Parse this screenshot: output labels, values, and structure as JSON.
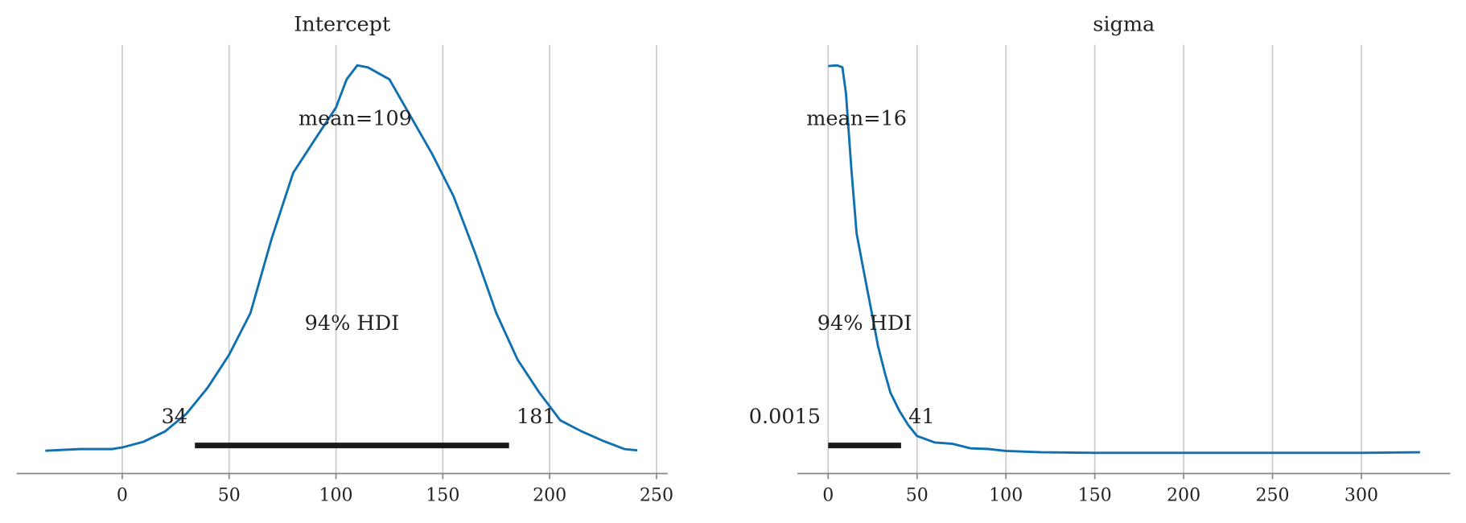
{
  "chart_data": [
    {
      "type": "density",
      "title": "Intercept",
      "color": "#1170b0",
      "x": [
        -36,
        -20,
        -5,
        0,
        10,
        20,
        30,
        40,
        50,
        60,
        70,
        80,
        90,
        100,
        105,
        110,
        115,
        125,
        135,
        145,
        155,
        165,
        175,
        185,
        195,
        205,
        215,
        225,
        235,
        241
      ],
      "values": [
        0.0001,
        0.00014,
        0.00014,
        0.00018,
        0.00032,
        0.00057,
        0.001,
        0.00164,
        0.00244,
        0.00346,
        0.00529,
        0.00688,
        0.00768,
        0.00847,
        0.00916,
        0.0095,
        0.00945,
        0.00916,
        0.00825,
        0.00734,
        0.00631,
        0.00494,
        0.00346,
        0.00232,
        0.00153,
        0.00084,
        0.00057,
        0.00034,
        0.00014,
        0.00011
      ],
      "xlim": [
        -49.4,
        255.2
      ],
      "xticks": [
        0,
        50,
        100,
        150,
        200,
        250
      ],
      "ylim": [
        0,
        0.0095
      ],
      "grid": true,
      "mean": {
        "value": 109,
        "label": "mean=109"
      },
      "hdi": [
        34,
        181
      ],
      "hdi_label": "94% HDI"
    },
    {
      "type": "density",
      "title": "sigma",
      "color": "#1170b0",
      "x": [
        0,
        5,
        8,
        10,
        13,
        16,
        20,
        25,
        28,
        32,
        35,
        40,
        45,
        50,
        55,
        60,
        70,
        80,
        90,
        100,
        120,
        150,
        200,
        250,
        300,
        333
      ],
      "values": [
        0.0599,
        0.06,
        0.0597,
        0.0557,
        0.0442,
        0.0341,
        0.0283,
        0.0212,
        0.0168,
        0.0125,
        0.0096,
        0.0068,
        0.0046,
        0.0029,
        0.0024,
        0.0019,
        0.0017,
        0.001,
        0.0009,
        0.0006,
        0.0004,
        0.0003,
        0.0003,
        0.0003,
        0.0003,
        0.0004
      ],
      "xlim": [
        -17.3,
        350
      ],
      "xticks": [
        0,
        50,
        100,
        150,
        200,
        250,
        300
      ],
      "ylim": [
        0,
        0.06
      ],
      "grid": true,
      "mean": {
        "value": 16,
        "label": "mean=16"
      },
      "hdi": [
        0.0015,
        41
      ],
      "hdi_label": "94% HDI"
    }
  ]
}
